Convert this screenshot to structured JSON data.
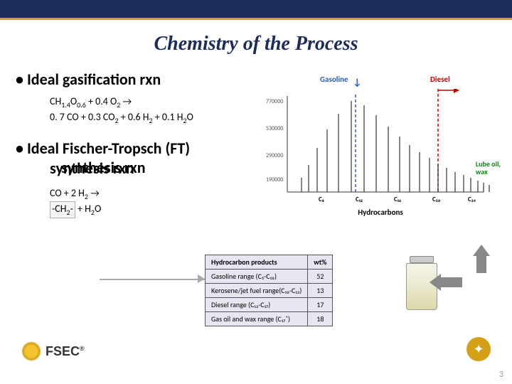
{
  "title": "Chemistry of the Process",
  "section1": {
    "heading": "Ideal gasification rxn",
    "eq_line1": "CH₁․₄O₀․₆ + 0.4 O₂ →",
    "eq_line2": "0.7 CO + 0.3 CO₂ + 0.6 H₂ + 0.1 H₂O"
  },
  "section2": {
    "heading_l1": "Ideal Fischer-Tropsch (FT)",
    "heading_l2": " synthesis rxn",
    "eq_line1": "CO + 2 H₂ →",
    "eq_ch2": "-CH₂-",
    "eq_tail": " + H₂O"
  },
  "chart": {
    "label_gasoline": "Gasoline",
    "label_diesel": "Diesel",
    "label_lube1": "Lube oil,",
    "label_lube2": "wax",
    "xaxis_label": "Hydrocarbons",
    "x_ticks": [
      "C₈",
      "C₁₂",
      "C₁₆",
      "C₂₀",
      "C₂₄"
    ],
    "y_ticks": [
      "770000",
      "530000",
      "290000",
      "190000"
    ],
    "peaks_x": [
      20,
      30,
      42,
      56,
      72,
      90,
      108,
      125,
      142,
      158,
      172,
      186,
      200,
      212,
      224,
      236,
      248,
      258,
      268,
      276,
      284
    ],
    "peaks_h": [
      20,
      38,
      62,
      88,
      110,
      128,
      122,
      108,
      92,
      78,
      66,
      56,
      48,
      40,
      34,
      28,
      24,
      20,
      16,
      13,
      10
    ],
    "gasoline_x": 108,
    "diesel_x": 224,
    "colors": {
      "gasoline": "#2b5cc4",
      "diesel": "#cc0000",
      "lube": "#0a8a0a",
      "axis": "#333333",
      "peaks": "#333333"
    }
  },
  "table": {
    "header": [
      "Hydrocarbon products",
      "wt%"
    ],
    "rows": [
      [
        "Gasoline range (C₅-C₁₀)",
        "52"
      ],
      [
        "Kerosene/jet fuel range(C₁₀-C₁₃)",
        "13"
      ],
      [
        "Diesel range (C₁₃-C₁₇)",
        "17"
      ],
      [
        "Gas oil and wax range (C₁₇⁺)",
        "18"
      ]
    ]
  },
  "footer": {
    "fsec": "FSEC",
    "page": "3"
  }
}
